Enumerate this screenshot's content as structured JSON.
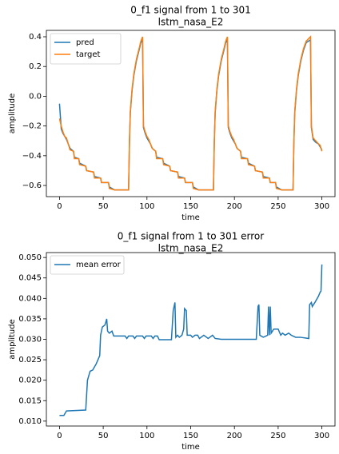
{
  "chart_data": [
    {
      "type": "line",
      "title": "0_f1 signal from 1 to 301",
      "subtitle": "lstm_nasa_E2",
      "xlabel": "time",
      "ylabel": "amplitude",
      "xlim": [
        -15,
        315
      ],
      "ylim": [
        -0.675,
        0.443
      ],
      "xticks": [
        0,
        50,
        100,
        150,
        200,
        250,
        300
      ],
      "yticks": [
        {
          "value": -0.6,
          "label": "−0.6"
        },
        {
          "value": -0.4,
          "label": "−0.4"
        },
        {
          "value": -0.2,
          "label": "−0.2"
        },
        {
          "value": 0,
          "label": "0.0"
        },
        0.2,
        0.4
      ],
      "legend": "upper left",
      "x": [
        0,
        2,
        4,
        6,
        8,
        10,
        12,
        16,
        17,
        22,
        23,
        30,
        31,
        39,
        40,
        47,
        48,
        56,
        57,
        63,
        79,
        80,
        81,
        83,
        85,
        88,
        91,
        93,
        95,
        96,
        98,
        100,
        102,
        104,
        106,
        110,
        111,
        118,
        119,
        126,
        127,
        135,
        136,
        143,
        144,
        152,
        153,
        159,
        176,
        177,
        178,
        180,
        182,
        185,
        188,
        190,
        192,
        193,
        195,
        197,
        199,
        201,
        203,
        207,
        208,
        215,
        216,
        223,
        224,
        232,
        233,
        240,
        241,
        247,
        248,
        254,
        267,
        268,
        269,
        271,
        273,
        276,
        279,
        282,
        287,
        288,
        290,
        293,
        296,
        298,
        300
      ],
      "series": [
        {
          "name": "pred",
          "color": "#1f77b4",
          "values": [
            -0.05,
            -0.22,
            -0.25,
            -0.27,
            -0.29,
            -0.32,
            -0.35,
            -0.37,
            -0.41,
            -0.42,
            -0.45,
            -0.47,
            -0.5,
            -0.51,
            -0.54,
            -0.55,
            -0.58,
            -0.58,
            -0.61,
            -0.63,
            -0.63,
            -0.31,
            -0.11,
            0.04,
            0.14,
            0.24,
            0.31,
            0.36,
            0.38,
            -0.21,
            -0.25,
            -0.28,
            -0.3,
            -0.32,
            -0.35,
            -0.37,
            -0.41,
            -0.42,
            -0.45,
            -0.47,
            -0.5,
            -0.51,
            -0.54,
            -0.55,
            -0.58,
            -0.58,
            -0.61,
            -0.63,
            -0.63,
            -0.31,
            -0.11,
            0.04,
            0.14,
            0.24,
            0.31,
            0.36,
            0.38,
            -0.21,
            -0.25,
            -0.28,
            -0.3,
            -0.32,
            -0.35,
            -0.37,
            -0.41,
            -0.42,
            -0.45,
            -0.47,
            -0.5,
            -0.51,
            -0.54,
            -0.55,
            -0.58,
            -0.58,
            -0.61,
            -0.63,
            -0.63,
            -0.31,
            -0.11,
            0.04,
            0.14,
            0.24,
            0.31,
            0.36,
            0.38,
            -0.21,
            -0.29,
            -0.31,
            -0.32,
            -0.34,
            -0.36
          ]
        },
        {
          "name": "target",
          "color": "#ff7f0e",
          "values": [
            -0.15,
            -0.2,
            -0.24,
            -0.27,
            -0.28,
            -0.32,
            -0.36,
            -0.37,
            -0.42,
            -0.42,
            -0.46,
            -0.47,
            -0.5,
            -0.51,
            -0.55,
            -0.55,
            -0.58,
            -0.58,
            -0.62,
            -0.63,
            -0.63,
            -0.3,
            -0.1,
            0.05,
            0.15,
            0.25,
            0.32,
            0.37,
            0.4,
            -0.2,
            -0.24,
            -0.27,
            -0.29,
            -0.32,
            -0.35,
            -0.37,
            -0.42,
            -0.42,
            -0.46,
            -0.47,
            -0.5,
            -0.51,
            -0.55,
            -0.55,
            -0.58,
            -0.58,
            -0.62,
            -0.63,
            -0.63,
            -0.3,
            -0.1,
            0.05,
            0.15,
            0.25,
            0.32,
            0.37,
            0.4,
            -0.2,
            -0.24,
            -0.27,
            -0.29,
            -0.32,
            -0.35,
            -0.37,
            -0.42,
            -0.42,
            -0.46,
            -0.47,
            -0.5,
            -0.51,
            -0.55,
            -0.55,
            -0.58,
            -0.58,
            -0.62,
            -0.63,
            -0.63,
            -0.3,
            -0.1,
            0.05,
            0.15,
            0.25,
            0.32,
            0.37,
            0.4,
            -0.2,
            -0.28,
            -0.3,
            -0.32,
            -0.33,
            -0.37
          ]
        }
      ]
    },
    {
      "type": "line",
      "title": "0_f1 signal from 1 to 301  error",
      "subtitle": "lstm_nasa_E2",
      "xlabel": "time",
      "ylabel": "amplitude",
      "xlim": [
        -15,
        315
      ],
      "ylim": [
        0.0088,
        0.0512
      ],
      "xticks": [
        0,
        50,
        100,
        150,
        200,
        250,
        300
      ],
      "yticks": [
        {
          "value": 0.01,
          "label": "0.010"
        },
        0.015,
        {
          "value": 0.02,
          "label": "0.020"
        },
        0.025,
        {
          "value": 0.03,
          "label": "0.030"
        },
        0.035,
        {
          "value": 0.04,
          "label": "0.040"
        },
        0.045,
        {
          "value": 0.05,
          "label": "0.050"
        }
      ],
      "legend": "upper left",
      "x": [
        0,
        5,
        8,
        30,
        32,
        35,
        38,
        42,
        46,
        47,
        49,
        52,
        54,
        55,
        57,
        60,
        62,
        75,
        77,
        79,
        84,
        86,
        88,
        95,
        97,
        99,
        105,
        107,
        109,
        112,
        114,
        128,
        130,
        132,
        133,
        135,
        137,
        140,
        142,
        143,
        145,
        146,
        150,
        152,
        155,
        158,
        160,
        165,
        170,
        175,
        178,
        185,
        225,
        227,
        228,
        229,
        233,
        238,
        239,
        240,
        241,
        242,
        245,
        250,
        253,
        255,
        258,
        262,
        265,
        270,
        275,
        285,
        286,
        288,
        289,
        292,
        296,
        298,
        299,
        300
      ],
      "series": [
        {
          "name": "mean error",
          "color": "#1f77b4",
          "values": [
            0.0114,
            0.0114,
            0.0125,
            0.0127,
            0.02,
            0.0222,
            0.0225,
            0.024,
            0.026,
            0.031,
            0.033,
            0.0335,
            0.035,
            0.032,
            0.0315,
            0.032,
            0.0308,
            0.0308,
            0.0302,
            0.0308,
            0.0308,
            0.0302,
            0.0308,
            0.0308,
            0.0302,
            0.0308,
            0.0308,
            0.0302,
            0.0308,
            0.0308,
            0.0299,
            0.0299,
            0.037,
            0.039,
            0.0305,
            0.031,
            0.0305,
            0.031,
            0.0325,
            0.0375,
            0.037,
            0.031,
            0.031,
            0.0305,
            0.031,
            0.031,
            0.0302,
            0.031,
            0.0302,
            0.031,
            0.0302,
            0.03,
            0.03,
            0.038,
            0.0385,
            0.031,
            0.0305,
            0.031,
            0.038,
            0.031,
            0.038,
            0.0315,
            0.0325,
            0.0325,
            0.031,
            0.0315,
            0.031,
            0.0315,
            0.031,
            0.0305,
            0.0305,
            0.0302,
            0.0385,
            0.039,
            0.038,
            0.039,
            0.0405,
            0.0415,
            0.0418,
            0.0483
          ]
        }
      ]
    }
  ]
}
